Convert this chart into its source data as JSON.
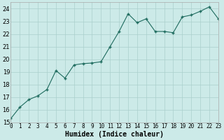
{
  "x": [
    0,
    1,
    2,
    3,
    4,
    5,
    6,
    7,
    8,
    9,
    10,
    11,
    12,
    13,
    14,
    15,
    16,
    17,
    18,
    19,
    20,
    21,
    22,
    23
  ],
  "y": [
    15.3,
    16.2,
    16.8,
    17.1,
    17.6,
    19.1,
    18.5,
    19.55,
    19.65,
    19.7,
    19.8,
    21.0,
    22.2,
    23.6,
    22.9,
    23.2,
    22.2,
    22.2,
    22.1,
    23.35,
    23.5,
    23.8,
    24.15,
    23.2
  ],
  "xlabel": "Humidex (Indice chaleur)",
  "bg_color": "#cceae8",
  "line_color": "#1e6b5e",
  "marker_color": "#1e6b5e",
  "grid_color": "#aacfcc",
  "spine_color": "#aaaaaa",
  "xlim": [
    0,
    23
  ],
  "ylim": [
    15,
    24.5
  ],
  "yticks": [
    15,
    16,
    17,
    18,
    19,
    20,
    21,
    22,
    23,
    24
  ],
  "xticks": [
    0,
    1,
    2,
    3,
    4,
    5,
    6,
    7,
    8,
    9,
    10,
    11,
    12,
    13,
    14,
    15,
    16,
    17,
    18,
    19,
    20,
    21,
    22,
    23
  ],
  "xlabel_fontsize": 7,
  "tick_fontsize": 5.5,
  "ytick_fontsize": 6
}
